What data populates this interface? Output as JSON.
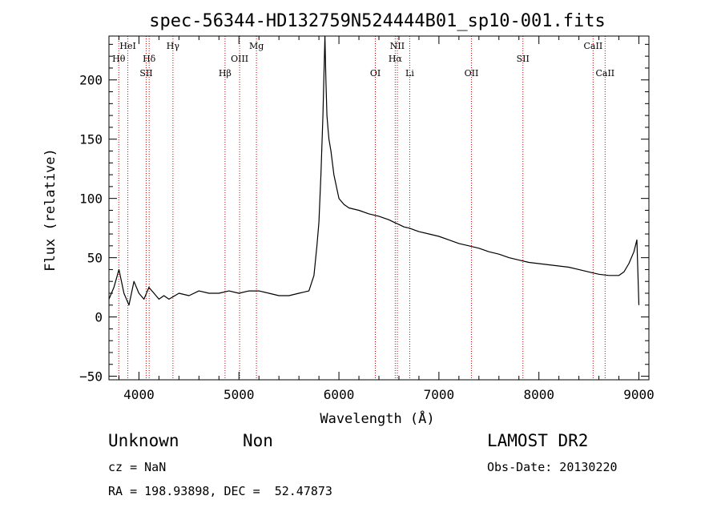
{
  "chart_data": {
    "type": "line",
    "title": "spec-56344-HD132759N524444B01_sp10-001.fits",
    "xlabel": "Wavelength (Å)",
    "ylabel": "Flux (relative)",
    "xlim": [
      3700,
      9100
    ],
    "ylim": [
      -53,
      237
    ],
    "xticks": [
      4000,
      5000,
      6000,
      7000,
      8000,
      9000
    ],
    "yticks": [
      -50,
      0,
      50,
      100,
      150,
      200
    ],
    "ytick_labels": [
      "−50",
      "0",
      "50",
      "100",
      "150",
      "200"
    ],
    "series": [
      {
        "x": [
          3700,
          3750,
          3800,
          3850,
          3900,
          3950,
          4000,
          4050,
          4100,
          4150,
          4200,
          4250,
          4300,
          4400,
          4500,
          4600,
          4700,
          4800,
          4900,
          5000,
          5100,
          5200,
          5300,
          5400,
          5500,
          5600,
          5700,
          5750,
          5780,
          5800,
          5820,
          5840,
          5860,
          5870,
          5880,
          5890,
          5900,
          5920,
          5950,
          6000,
          6050,
          6100,
          6200,
          6300,
          6400,
          6500,
          6550,
          6600,
          6650,
          6700,
          6800,
          6900,
          7000,
          7100,
          7200,
          7300,
          7400,
          7500,
          7600,
          7700,
          7800,
          7900,
          8000,
          8100,
          8200,
          8300,
          8400,
          8500,
          8600,
          8700,
          8800,
          8850,
          8900,
          8950,
          8980,
          9000
        ],
        "y": [
          15,
          25,
          40,
          20,
          10,
          30,
          20,
          15,
          25,
          20,
          15,
          18,
          15,
          20,
          18,
          22,
          20,
          20,
          22,
          20,
          22,
          22,
          20,
          18,
          18,
          20,
          22,
          35,
          60,
          80,
          120,
          170,
          240,
          200,
          170,
          160,
          150,
          140,
          120,
          100,
          95,
          92,
          90,
          87,
          85,
          82,
          80,
          78,
          76,
          75,
          72,
          70,
          68,
          65,
          62,
          60,
          58,
          55,
          53,
          50,
          48,
          46,
          45,
          44,
          43,
          42,
          40,
          38,
          36,
          35,
          35,
          38,
          45,
          55,
          65,
          10
        ]
      }
    ],
    "spectral_lines": [
      {
        "label": "Hθ",
        "wavelength": 3798,
        "row": 2
      },
      {
        "label": "HeI",
        "wavelength": 3889,
        "row": 1
      },
      {
        "label": "Hδ",
        "wavelength": 4102,
        "row": 2
      },
      {
        "label": "SII",
        "wavelength": 4072,
        "row": 3
      },
      {
        "label": "Hγ",
        "wavelength": 4340,
        "row": 1
      },
      {
        "label": "Hβ",
        "wavelength": 4861,
        "row": 3
      },
      {
        "label": "OIII",
        "wavelength": 5007,
        "row": 2
      },
      {
        "label": "Mg",
        "wavelength": 5175,
        "row": 1
      },
      {
        "label": "OI",
        "wavelength": 6364,
        "row": 3
      },
      {
        "label": "NII",
        "wavelength": 6584,
        "row": 1
      },
      {
        "label": "Hα",
        "wavelength": 6563,
        "row": 2
      },
      {
        "label": "Li",
        "wavelength": 6708,
        "row": 3
      },
      {
        "label": "OII",
        "wavelength": 7325,
        "row": 3
      },
      {
        "label": "SII",
        "wavelength": 7840,
        "row": 2
      },
      {
        "label": "CaII",
        "wavelength": 8542,
        "row": 1
      },
      {
        "label": "CaII",
        "wavelength": 8662,
        "row": 3
      }
    ],
    "line_color": "#000000",
    "marker_color": "#cc0000",
    "grid": false
  },
  "info": {
    "class_name": "Unknown",
    "subclass": "Non",
    "survey": "LAMOST DR2",
    "redshift": "cz = NaN",
    "obs_date": "Obs-Date: 20130220",
    "coords": "RA = 198.93898, DEC =  52.47873"
  }
}
